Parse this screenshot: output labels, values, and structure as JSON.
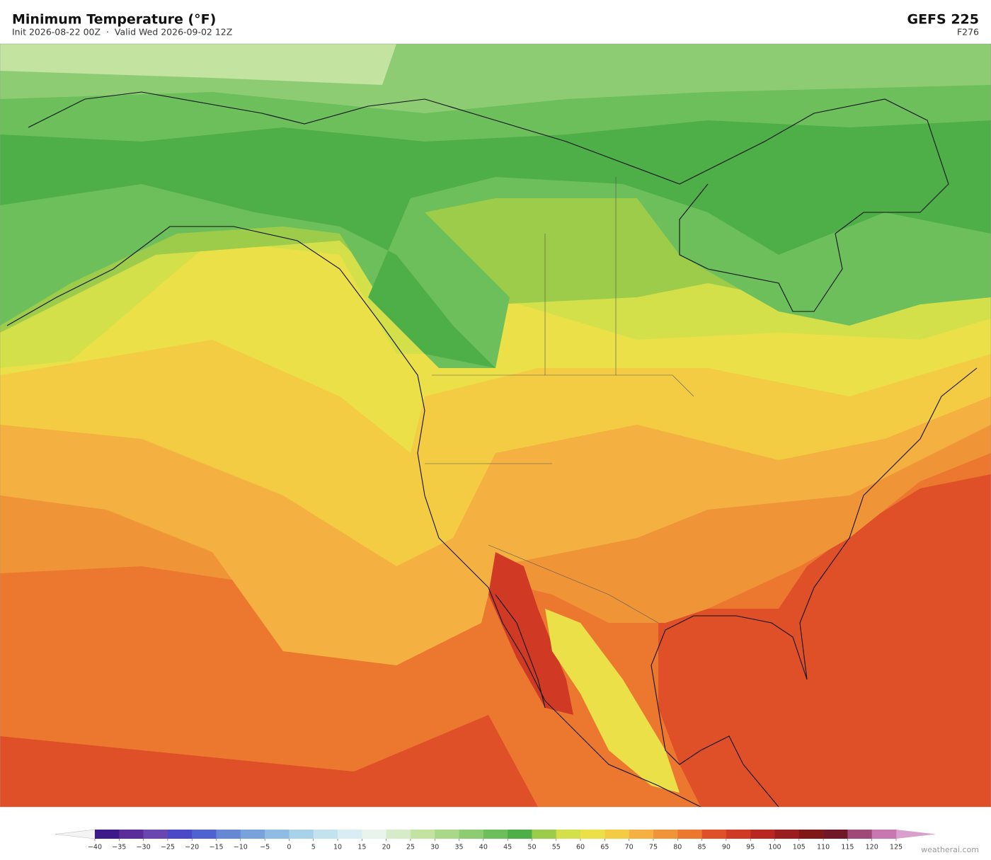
{
  "header": {
    "title": "Minimum Temperature  (°F)",
    "subtitle": "Init 2026-08-22 00Z  ·  Valid Wed 2026-09-02 12Z",
    "model": "GEFS  225",
    "forecast_hour": "F276"
  },
  "colorbar": {
    "ticks": [
      {
        "value": -40,
        "label": "−40"
      },
      {
        "value": -35,
        "label": "−35"
      },
      {
        "value": -30,
        "label": "−30"
      },
      {
        "value": -25,
        "label": "−25"
      },
      {
        "value": -20,
        "label": "−20"
      },
      {
        "value": -15,
        "label": "−15"
      },
      {
        "value": -10,
        "label": "−10"
      },
      {
        "value": -5,
        "label": "−5"
      },
      0,
      5,
      10,
      15,
      20,
      25,
      30,
      35,
      40,
      45,
      50,
      55,
      60,
      65,
      70,
      75,
      80,
      85,
      90,
      95,
      100,
      105,
      110,
      115,
      120,
      125
    ],
    "colors": [
      "#3d1a8a",
      "#5b2d9a",
      "#6a46b0",
      "#4a4ac8",
      "#4f62d0",
      "#6688d4",
      "#78a2dc",
      "#8fbce4",
      "#a8d2ea",
      "#c2e2f0",
      "#d8eef4",
      "#e8f4ec",
      "#d6ecc8",
      "#c2e4a0",
      "#a8d888",
      "#8ecc74",
      "#6cbf5a",
      "#4eae48",
      "#9ccc4a",
      "#d4e04a",
      "#ece048",
      "#f4cc44",
      "#f4b040",
      "#f09438",
      "#ec7830",
      "#e05028",
      "#d03a24",
      "#b82820",
      "#9a1e1e",
      "#801818",
      "#701828",
      "#a04878",
      "#c878b0"
    ],
    "under_color": "#f4f4f4",
    "over_color": "#d8a0cc"
  },
  "footer": {
    "credit": "weatherai.com"
  }
}
